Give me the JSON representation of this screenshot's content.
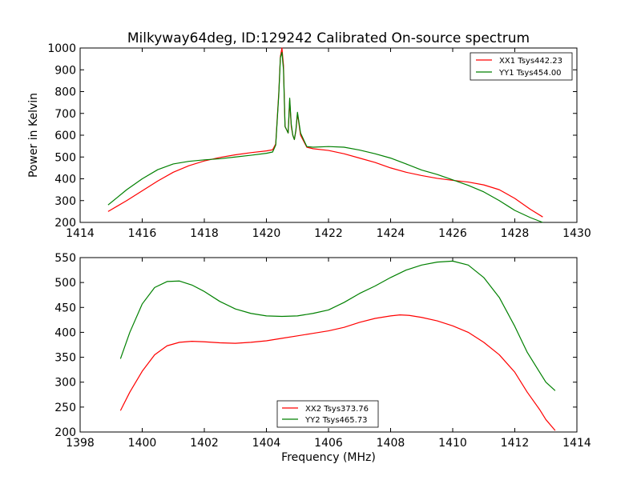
{
  "figure": {
    "title": "Milkyway64deg, ID:129242 Calibrated On-source spectrum",
    "xlabel": "Frequency (MHz)"
  },
  "chart_data": [
    {
      "type": "line",
      "title": "Milkyway64deg, ID:129242 Calibrated On-source spectrum",
      "xlabel": "",
      "ylabel": "Power in Kelvin",
      "xlim": [
        1414,
        1430
      ],
      "ylim": [
        200,
        1000
      ],
      "xticks": [
        1414,
        1416,
        1418,
        1420,
        1422,
        1424,
        1426,
        1428,
        1430
      ],
      "yticks": [
        200,
        300,
        400,
        500,
        600,
        700,
        800,
        900,
        1000
      ],
      "grid": false,
      "legend_position": "top-right",
      "series": [
        {
          "name": "XX1 Tsys442.23",
          "color": "#ff0000",
          "x": [
            1414.9,
            1415.2,
            1415.5,
            1416.0,
            1416.5,
            1417.0,
            1417.5,
            1418.0,
            1418.5,
            1419.0,
            1419.5,
            1420.0,
            1420.2,
            1420.3,
            1420.4,
            1420.45,
            1420.5,
            1420.55,
            1420.6,
            1420.7,
            1420.75,
            1420.8,
            1420.85,
            1420.9,
            1420.95,
            1421.0,
            1421.1,
            1421.3,
            1421.5,
            1422.0,
            1422.5,
            1423.0,
            1423.5,
            1424.0,
            1424.5,
            1425.0,
            1425.5,
            1426.0,
            1426.5,
            1427.0,
            1427.5,
            1428.0,
            1428.5,
            1428.9
          ],
          "y": [
            250,
            275,
            300,
            345,
            390,
            430,
            460,
            482,
            498,
            510,
            520,
            528,
            533,
            560,
            800,
            960,
            1000,
            920,
            640,
            610,
            760,
            640,
            600,
            580,
            620,
            700,
            600,
            545,
            538,
            530,
            515,
            495,
            475,
            450,
            430,
            415,
            402,
            393,
            385,
            372,
            350,
            310,
            260,
            225
          ]
        },
        {
          "name": "YY1 Tsys454.00",
          "color": "#008000",
          "x": [
            1414.9,
            1415.2,
            1415.5,
            1416.0,
            1416.5,
            1417.0,
            1417.5,
            1418.0,
            1418.5,
            1419.0,
            1419.5,
            1420.0,
            1420.2,
            1420.3,
            1420.4,
            1420.45,
            1420.5,
            1420.55,
            1420.6,
            1420.7,
            1420.75,
            1420.8,
            1420.85,
            1420.9,
            1420.95,
            1421.0,
            1421.1,
            1421.3,
            1421.5,
            1422.0,
            1422.5,
            1423.0,
            1423.5,
            1424.0,
            1424.5,
            1425.0,
            1425.5,
            1426.0,
            1426.5,
            1427.0,
            1427.5,
            1428.0,
            1428.5,
            1428.9
          ],
          "y": [
            280,
            315,
            350,
            400,
            442,
            468,
            480,
            487,
            492,
            500,
            508,
            517,
            523,
            555,
            790,
            955,
            980,
            900,
            640,
            610,
            770,
            650,
            600,
            580,
            625,
            705,
            610,
            548,
            545,
            548,
            545,
            532,
            515,
            495,
            468,
            440,
            420,
            395,
            370,
            340,
            300,
            255,
            222,
            200
          ]
        }
      ]
    },
    {
      "type": "line",
      "title": "",
      "xlabel": "Frequency (MHz)",
      "ylabel": "",
      "xlim": [
        1398,
        1414
      ],
      "ylim": [
        200,
        550
      ],
      "xticks": [
        1398,
        1400,
        1402,
        1404,
        1406,
        1408,
        1410,
        1412,
        1414
      ],
      "yticks": [
        200,
        250,
        300,
        350,
        400,
        450,
        500,
        550
      ],
      "grid": false,
      "legend_position": "bottom-center",
      "series": [
        {
          "name": "XX2 Tsys373.76",
          "color": "#ff0000",
          "x": [
            1399.3,
            1399.6,
            1400.0,
            1400.4,
            1400.8,
            1401.2,
            1401.6,
            1402.0,
            1402.5,
            1403.0,
            1403.5,
            1404.0,
            1404.5,
            1405.0,
            1405.5,
            1406.0,
            1406.5,
            1407.0,
            1407.5,
            1408.0,
            1408.3,
            1408.6,
            1409.0,
            1409.5,
            1410.0,
            1410.5,
            1411.0,
            1411.5,
            1412.0,
            1412.4,
            1412.8,
            1413.0,
            1413.3
          ],
          "y": [
            243,
            280,
            322,
            355,
            373,
            380,
            382,
            381,
            379,
            378,
            380,
            383,
            388,
            393,
            398,
            403,
            410,
            420,
            428,
            433,
            435,
            434,
            430,
            423,
            413,
            400,
            380,
            355,
            320,
            280,
            245,
            225,
            203
          ]
        },
        {
          "name": "YY2 Tsys465.73",
          "color": "#008000",
          "x": [
            1399.3,
            1399.6,
            1400.0,
            1400.4,
            1400.8,
            1401.2,
            1401.6,
            1402.0,
            1402.5,
            1403.0,
            1403.5,
            1404.0,
            1404.5,
            1405.0,
            1405.5,
            1406.0,
            1406.5,
            1407.0,
            1407.5,
            1408.0,
            1408.5,
            1409.0,
            1409.5,
            1410.0,
            1410.5,
            1411.0,
            1411.5,
            1412.0,
            1412.4,
            1412.8,
            1413.0,
            1413.3
          ],
          "y": [
            347,
            400,
            457,
            490,
            502,
            503,
            495,
            482,
            462,
            447,
            438,
            433,
            432,
            433,
            438,
            445,
            460,
            478,
            493,
            510,
            525,
            535,
            541,
            543,
            535,
            510,
            470,
            412,
            360,
            320,
            300,
            283
          ]
        }
      ]
    }
  ]
}
